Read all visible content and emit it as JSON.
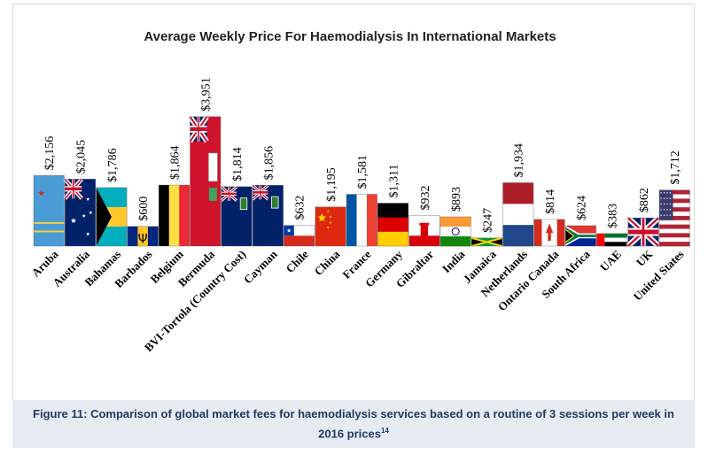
{
  "chart_data": {
    "type": "bar",
    "title": "Average Weekly Price For Haemodialysis In International Markets",
    "xlabel": "",
    "ylabel": "",
    "ylim": [
      0,
      4000
    ],
    "grid": false,
    "legend": "none",
    "categories": [
      "Aruba",
      "Australia",
      "Bahamas",
      "Barbados",
      "Belgium",
      "Bermuda",
      "BVI-Tortola (Country Cost)",
      "Cayman",
      "Chile",
      "China",
      "France",
      "Germany",
      "Gibraltar",
      "India",
      "Jamaica",
      "Netherlands",
      "Ontario Canada",
      "South Africa",
      "UAE",
      "UK",
      "United States"
    ],
    "values": [
      2156,
      2045,
      1786,
      600,
      1864,
      3951,
      1814,
      1856,
      632,
      1195,
      1581,
      1311,
      932,
      893,
      247,
      1934,
      814,
      624,
      383,
      862,
      1712
    ],
    "labels": [
      "$2,156",
      "$2,045",
      "$1,786",
      "$600",
      "$1,864",
      "$3,951",
      "$1,814",
      "$1,856",
      "$632",
      "$1,195",
      "$1,581",
      "$1,311",
      "$932",
      "$893",
      "$247",
      "$1,934",
      "$814",
      "$624",
      "$383",
      "$862",
      "$1,712"
    ],
    "bar_fill_icons": [
      "aruba-flag",
      "australia-flag",
      "bahamas-flag",
      "barbados-flag",
      "belgium-flag",
      "bermuda-flag",
      "bvi-flag",
      "cayman-flag",
      "chile-flag",
      "china-flag",
      "france-flag",
      "germany-flag",
      "gibraltar-flag",
      "india-flag",
      "jamaica-flag",
      "netherlands-flag",
      "canada-flag",
      "south-africa-flag",
      "uae-flag",
      "uk-flag",
      "usa-flag"
    ]
  },
  "caption": {
    "text": "Figure 11: Comparison of global market fees for haemodialysis services based on a routine of 3 sessions per week in 2016 prices",
    "ref": "14"
  }
}
